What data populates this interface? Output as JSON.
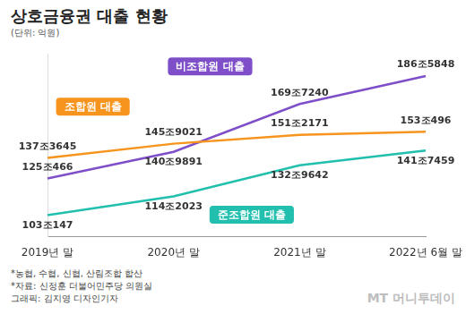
{
  "chart_data": {
    "type": "line",
    "title": "상호금융권 대출 현황",
    "subtitle": "(단위: 억원)",
    "categories": [
      "2019년 말",
      "2020년 말",
      "2021년 말",
      "2022년 6월 말"
    ],
    "series": [
      {
        "name": "조합원 대출",
        "color": "#f7941d",
        "values": [
          1373645,
          1459021,
          1512171,
          1530496
        ],
        "value_labels": [
          "137조3645",
          "145조9021",
          "151조2171",
          "153조496"
        ]
      },
      {
        "name": "비조합원 대출",
        "color": "#7e4fc8",
        "values": [
          1250466,
          1409891,
          1697240,
          1865848
        ],
        "value_labels": [
          "125조466",
          "140조9891",
          "169조7240",
          "186조5848"
        ]
      },
      {
        "name": "준조합원 대출",
        "color": "#22bfae",
        "values": [
          1030147,
          1142023,
          1329642,
          1417459
        ],
        "value_labels": [
          "103조147",
          "114조2023",
          "132조9642",
          "141조7459"
        ]
      }
    ],
    "ylim": [
      900000,
      2000000
    ],
    "grid": false,
    "data_labels": true,
    "tick_labels": "x",
    "marker": "none",
    "annotations": [
      "*농협, 수협, 신협, 산림조합 합산",
      "*자료: 신정훈 더불어민주당 의원실",
      "그래픽: 김지영 디자인기자"
    ],
    "watermark": "MT 머니투데이"
  }
}
